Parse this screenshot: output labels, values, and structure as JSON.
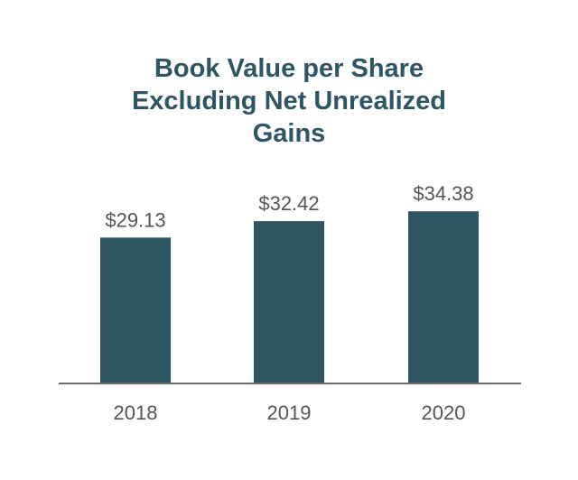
{
  "chart_data": {
    "type": "bar",
    "title_lines": [
      "Book Value per Share",
      "Excluding Net Unrealized",
      "Gains"
    ],
    "categories": [
      "2018",
      "2019",
      "2020"
    ],
    "values": [
      29.13,
      32.42,
      34.38
    ],
    "value_labels": [
      "$29.13",
      "$32.42",
      "$34.38"
    ],
    "xlabel": "",
    "ylabel": "",
    "grid": false,
    "legend": "none",
    "colors": {
      "bar": "#2e5564",
      "title": "#2e5564",
      "text": "#555555",
      "axis": "#6e6e6e"
    }
  }
}
